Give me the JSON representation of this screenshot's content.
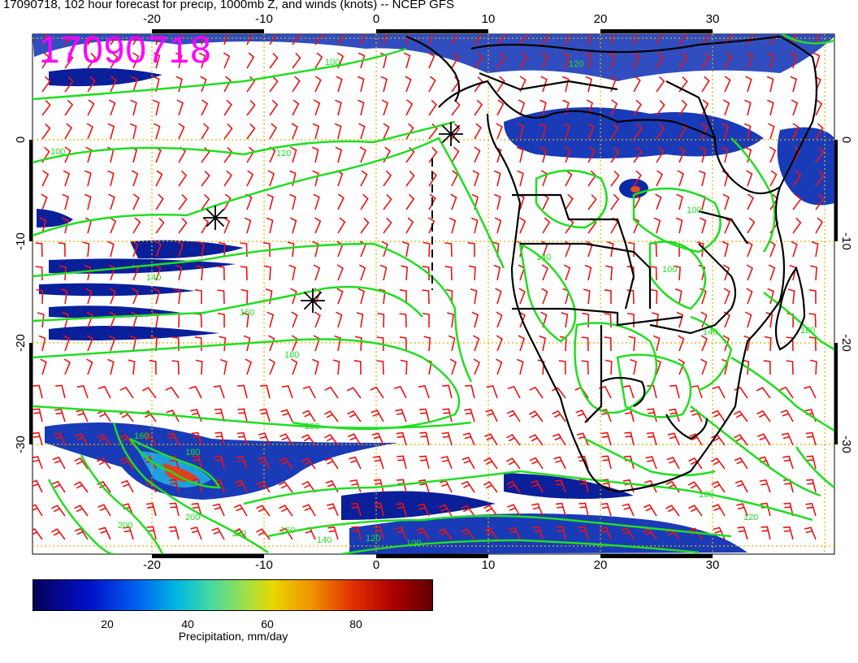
{
  "title": "17090718, 102 hour forecast for precip, 1000mb Z, and winds (knots) -- NCEP GFS",
  "stamp": "17090718",
  "map": {
    "lon_range": [
      -30,
      40
    ],
    "lat_range": [
      -40,
      10
    ],
    "top_lon_ticks": [
      "-20",
      "-10",
      "0",
      "10",
      "20",
      "30"
    ],
    "bottom_lon_ticks": [
      "-20",
      "-10",
      "0",
      "10",
      "20",
      "30"
    ],
    "left_lat_ticks": [
      "0",
      "-10",
      "-20",
      "-30"
    ],
    "right_lat_ticks": [
      "0",
      "-10",
      "-20",
      "-30"
    ],
    "contour_labels": [
      "100",
      "120",
      "140",
      "160",
      "180",
      "160",
      "140",
      "120",
      "100",
      "160",
      "180",
      "200",
      "200",
      "180",
      "160",
      "140",
      "120",
      "100",
      "100",
      "140",
      "160",
      "120",
      "100",
      "100"
    ],
    "colors": {
      "contour": "#22dd22",
      "wind_barb": "#ee1111",
      "grid": "#e0b000",
      "coast": "#000000",
      "stamp": "#ff00ff"
    }
  },
  "colorbar": {
    "ticks": [
      "20",
      "40",
      "60",
      "80"
    ],
    "label": "Precipitation, mm/day",
    "range": [
      0,
      100
    ]
  }
}
